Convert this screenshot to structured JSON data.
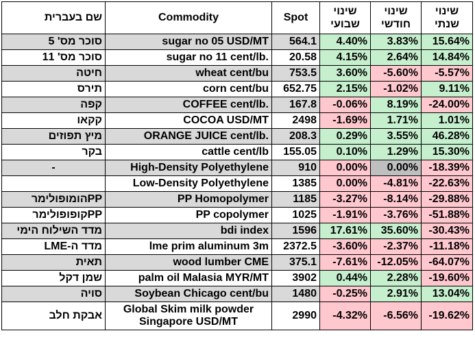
{
  "headers": {
    "hebrew_name": "שם בעברית",
    "commodity": "Commodity",
    "spot": "Spot",
    "weekly": [
      "שינוי",
      "שבועי"
    ],
    "monthly": [
      "שינוי",
      "חודשי"
    ],
    "yearly": [
      "שינוי",
      "שנתי"
    ]
  },
  "rows": [
    {
      "he": "סוכר מס' 5",
      "commodity": "sugar no 05 USD/MT",
      "spot": "564.1",
      "weekly": "4.40%",
      "monthly": "3.83%",
      "yearly": "15.64%"
    },
    {
      "he": "סוכר מס' 11",
      "commodity": "sugar no 11 cent/lb.",
      "spot": "20.58",
      "weekly": "4.15%",
      "monthly": "2.64%",
      "yearly": "14.84%"
    },
    {
      "he": "חיטה",
      "commodity": "wheat cent/bu",
      "spot": "753.5",
      "weekly": "3.60%",
      "monthly": "-5.60%",
      "yearly": "-5.57%"
    },
    {
      "he": "תירס",
      "commodity": "corn cent/bu",
      "spot": "652.75",
      "weekly": "2.15%",
      "monthly": "-1.02%",
      "yearly": "9.11%"
    },
    {
      "he": "קפה",
      "commodity": "COFFEE cent/lb.",
      "spot": "167.8",
      "weekly": "-0.06%",
      "monthly": "8.19%",
      "yearly": "-24.00%"
    },
    {
      "he": "קקאו",
      "commodity": "COCOA USD/MT",
      "spot": "2498",
      "weekly": "-1.69%",
      "monthly": "1.71%",
      "yearly": "1.01%"
    },
    {
      "he": "מיץ תפוזים",
      "commodity": "ORANGE JUICE cent/lb.",
      "spot": "208.3",
      "weekly": "0.29%",
      "monthly": "3.55%",
      "yearly": "46.28%"
    },
    {
      "he": "בקר",
      "commodity": "cattle cent/lb",
      "spot": "155.05",
      "weekly": "0.10%",
      "monthly": "1.29%",
      "yearly": "15.30%"
    },
    {
      "he": "-",
      "commodity": "High-Density Polyethylene",
      "spot": "910",
      "weekly": "0.00%",
      "monthly": "0.00%",
      "yearly": "-18.39%"
    },
    {
      "he": "",
      "commodity": "Low-Density Polyethylene",
      "spot": "1385",
      "weekly": "0.00%",
      "monthly": "-4.81%",
      "yearly": "-22.63%"
    },
    {
      "he": "PPהומופולימר",
      "commodity": "PP Homopolymer",
      "spot": "1185",
      "weekly": "-3.27%",
      "monthly": "-8.14%",
      "yearly": "-29.88%"
    },
    {
      "he": "PPקופופולימר",
      "commodity": "PP copolymer",
      "spot": "1025",
      "weekly": "-1.91%",
      "monthly": "-3.76%",
      "yearly": "-51.88%"
    },
    {
      "he": "מדד השילוח הימי",
      "commodity": "bdi index",
      "spot": "1596",
      "weekly": "17.61%",
      "monthly": "35.60%",
      "yearly": "-30.43%"
    },
    {
      "he": "מדד ה-LME",
      "commodity": "lme prim aluminum 3m",
      "spot": "2372.5",
      "weekly": "-3.60%",
      "monthly": "-2.37%",
      "yearly": "-11.18%"
    },
    {
      "he": "תאית",
      "commodity": "wood lumber CME",
      "spot": "375.1",
      "weekly": "-7.61%",
      "monthly": "-12.05%",
      "yearly": "-64.07%"
    },
    {
      "he": "שמן דקל",
      "commodity": "palm oil Malasia MYR/MT",
      "spot": "3902",
      "weekly": "0.44%",
      "monthly": "2.28%",
      "yearly": "-19.60%"
    },
    {
      "he": "סויה",
      "commodity": "Soybean Chicago cent/bu",
      "spot": "1480",
      "weekly": "-0.25%",
      "monthly": "2.91%",
      "yearly": "13.04%"
    },
    {
      "he": "אבקת חלב",
      "commodity_lines": [
        "Global Skim milk powder",
        "Singapore USD/MT"
      ],
      "spot": "2990",
      "weekly": "-4.32%",
      "monthly": "-6.56%",
      "yearly": "-19.62%"
    }
  ],
  "cell_colors": {
    "positive": "#c6efce",
    "negative": "#ffc7ce",
    "zero_grey": "#bfbfbf",
    "shaded_row": "#d9d9d9"
  }
}
